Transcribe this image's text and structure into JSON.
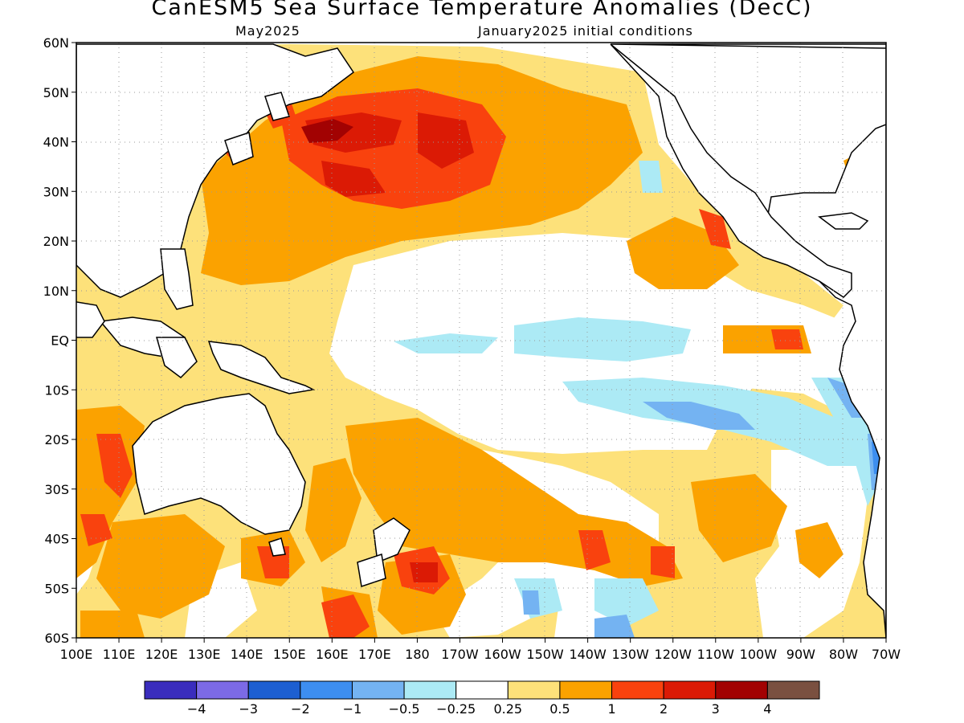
{
  "title": "CanESM5 Sea Surface Temperature Anomalies (DecC)",
  "forecast_month": "May2025",
  "initial_conditions": "January2025 initial conditions",
  "lat_labels": [
    "60N",
    "50N",
    "40N",
    "30N",
    "20N",
    "10N",
    "EQ",
    "10S",
    "20S",
    "30S",
    "40S",
    "50S",
    "60S"
  ],
  "lon_labels": [
    "100E",
    "110E",
    "120E",
    "130E",
    "140E",
    "150E",
    "160E",
    "170E",
    "180",
    "170W",
    "160W",
    "150W",
    "140W",
    "130W",
    "120W",
    "110W",
    "100W",
    "90W",
    "80W",
    "70W"
  ],
  "colorbar": {
    "colors": [
      "#3a2dbd",
      "#7c6ae6",
      "#1d5fd1",
      "#3d8ef0",
      "#74b3f2",
      "#aceaf5",
      "#ffffff",
      "#fde17a",
      "#fba200",
      "#f9420e",
      "#db1a05",
      "#a20202",
      "#7a5040"
    ],
    "labels": [
      "−4",
      "−3",
      "−2",
      "−1",
      "−0.5",
      "−0.25",
      "0.25",
      "0.5",
      "1",
      "2",
      "3",
      "4"
    ]
  }
}
